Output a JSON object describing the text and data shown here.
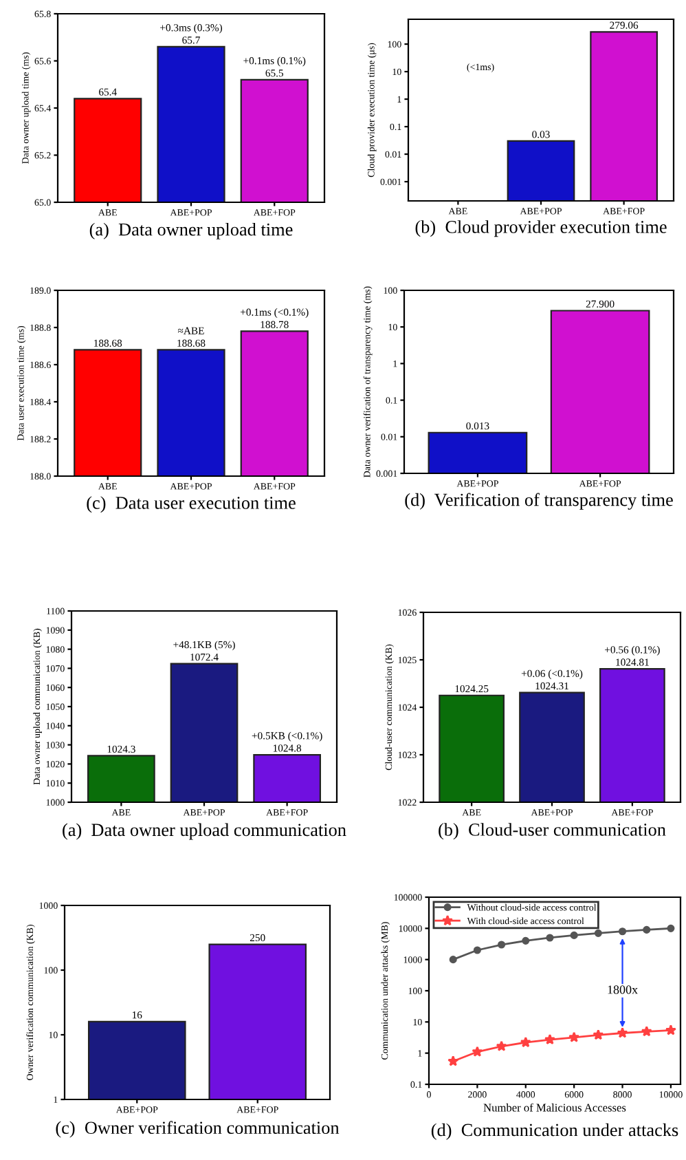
{
  "chart_data": [
    {
      "type": "bar",
      "title": "(a)  Data owner upload time",
      "ylabel": "Data owner upload time (ms)",
      "categories": [
        "ABE",
        "ABE+POP",
        "ABE+FOP"
      ],
      "values": [
        65.44,
        65.66,
        65.52
      ],
      "colors": [
        "#ff0000",
        "#1010c8",
        "#d010d0"
      ],
      "value_labels": [
        "65.4",
        "65.7",
        "65.5"
      ],
      "ylim": [
        65.0,
        65.8
      ],
      "yticks": [
        {
          "value": 65.0,
          "label": "65.0"
        },
        {
          "value": 65.2,
          "label": "65.2"
        },
        {
          "value": 65.4,
          "label": "65.4"
        },
        {
          "value": 65.6,
          "label": "65.6"
        },
        {
          "value": 65.8,
          "label": "65.8"
        }
      ],
      "annotations": [
        {
          "text": "+0.3ms (0.3%)",
          "x": "ABE+POP",
          "y": 65.66
        },
        {
          "text": "+0.1ms (0.1%)",
          "x": "ABE+FOP",
          "y": 65.52
        }
      ]
    },
    {
      "type": "bar",
      "title": "(b)  Cloud provider execution time",
      "ylabel": "Cloud provider execution time (μs)",
      "categories": [
        "ABE",
        "ABE+POP",
        "ABE+FOP"
      ],
      "values": [
        null,
        0.03,
        279.06
      ],
      "colors": [
        "#ff0000",
        "#1010c8",
        "#d010d0"
      ],
      "value_labels": [
        null,
        "0.03",
        "279.06"
      ],
      "log": true,
      "ylim": [
        0.0002,
        800
      ],
      "yticks": [
        0.001,
        0.01,
        0.1,
        1,
        10,
        100
      ],
      "annotations": [
        "(<1ms)"
      ]
    },
    {
      "type": "bar",
      "title": "(c)  Data user execution time",
      "ylabel": "Data user execution time (ms)",
      "categories": [
        "ABE",
        "ABE+POP",
        "ABE+FOP"
      ],
      "values": [
        188.68,
        188.68,
        188.78
      ],
      "colors": [
        "#ff0000",
        "#1010c8",
        "#d010d0"
      ],
      "value_labels": [
        "188.68",
        "188.68",
        "188.78"
      ],
      "ylim": [
        188.0,
        189.0
      ],
      "yticks": [
        {
          "value": 188.0,
          "label": "188.0"
        },
        {
          "value": 188.2,
          "label": "188.2"
        },
        {
          "value": 188.4,
          "label": "188.4"
        },
        {
          "value": 188.6,
          "label": "188.6"
        },
        {
          "value": 188.8,
          "label": "188.8"
        },
        {
          "value": 189.0,
          "label": "189.0"
        }
      ],
      "annotations": [
        {
          "text": "≈ABE",
          "x": "ABE+POP",
          "y": 188.68
        },
        {
          "text": "+0.1ms (<0.1%)",
          "x": "ABE+FOP",
          "y": 188.78
        }
      ]
    },
    {
      "type": "bar",
      "title": "(d)  Verification of transparency time",
      "ylabel": "Data owner verification of transparency time (ms)",
      "categories": [
        "ABE+POP",
        "ABE+FOP"
      ],
      "values": [
        0.013,
        27.9
      ],
      "colors": [
        "#1010c8",
        "#d010d0"
      ],
      "value_labels": [
        "0.013",
        "27.900"
      ],
      "log": true,
      "ylim": [
        0.001,
        100
      ],
      "yticks": [
        0.001,
        0.01,
        0.1,
        1,
        10,
        100
      ]
    },
    {
      "type": "bar",
      "title": "(a)  Data owner upload communication",
      "ylabel": "Data owner upload communication (KB)",
      "categories": [
        "ABE",
        "ABE+POP",
        "ABE+FOP"
      ],
      "values": [
        1024.3,
        1072.4,
        1024.8
      ],
      "colors": [
        "#0a6e0a",
        "#1a1a80",
        "#7010e0"
      ],
      "value_labels": [
        "1024.3",
        "1072.4",
        "1024.8"
      ],
      "ylim": [
        1000,
        1100
      ],
      "yticks": [
        1000,
        1010,
        1020,
        1030,
        1040,
        1050,
        1060,
        1070,
        1080,
        1090,
        1100
      ],
      "annotations": [
        {
          "text": "+48.1KB (5%)",
          "x": "ABE+POP",
          "y": 1072.4
        },
        {
          "text": "+0.5KB (<0.1%)",
          "x": "ABE+FOP",
          "y": 1024.8
        }
      ]
    },
    {
      "type": "bar",
      "title": "(b)  Cloud-user communication",
      "ylabel": "Cloud-user communication (KB)",
      "categories": [
        "ABE",
        "ABE+POP",
        "ABE+FOP"
      ],
      "values": [
        1024.25,
        1024.31,
        1024.81
      ],
      "colors": [
        "#0a6e0a",
        "#1a1a80",
        "#7010e0"
      ],
      "value_labels": [
        "1024.25",
        "1024.31",
        "1024.81"
      ],
      "ylim": [
        1022,
        1026
      ],
      "yticks": [
        1022,
        1023,
        1024,
        1025,
        1026
      ],
      "annotations": [
        {
          "text": "+0.06 (<0.1%)",
          "x": "ABE+POP",
          "y": 1024.31
        },
        {
          "text": "+0.56 (0.1%)",
          "x": "ABE+FOP",
          "y": 1024.81
        }
      ]
    },
    {
      "type": "bar",
      "title": "(c)  Owner verification communication",
      "ylabel": "Owner verification communication (KB)",
      "categories": [
        "ABE+POP",
        "ABE+FOP"
      ],
      "values": [
        16,
        250
      ],
      "colors": [
        "#1a1a80",
        "#7010e0"
      ],
      "value_labels": [
        "16",
        "250"
      ],
      "log": true,
      "ylim": [
        1,
        1000
      ],
      "yticks": [
        1,
        10,
        100,
        1000
      ]
    },
    {
      "type": "line",
      "title": "(d)  Communication under attacks",
      "xlabel": "Number of Malicious Accesses",
      "ylabel": "Communication under attacks (MB)",
      "x": [
        1000,
        2000,
        3000,
        4000,
        5000,
        6000,
        7000,
        8000,
        9000,
        10000
      ],
      "series": [
        {
          "name": "Without cloud-side access control",
          "color": "#555555",
          "marker": "circle",
          "values": [
            1000,
            2000,
            3000,
            4000,
            5000,
            6000,
            7000,
            8000,
            9000,
            10000
          ]
        },
        {
          "name": "With cloud-side access control",
          "color": "#ff4040",
          "marker": "star",
          "values": [
            0.55,
            1.1,
            1.65,
            2.2,
            2.7,
            3.2,
            3.8,
            4.4,
            4.9,
            5.4
          ]
        }
      ],
      "log": "y",
      "xlim": [
        0,
        10400
      ],
      "xticks": [
        0,
        2000,
        4000,
        6000,
        8000,
        10000
      ],
      "ylim": [
        0.1,
        100000
      ],
      "yticks": [
        0.1,
        1,
        10,
        100,
        1000,
        10000,
        100000
      ],
      "legend": "top left",
      "annotations": [
        {
          "text": "1800x",
          "x": 8000,
          "y": 100
        }
      ]
    }
  ]
}
